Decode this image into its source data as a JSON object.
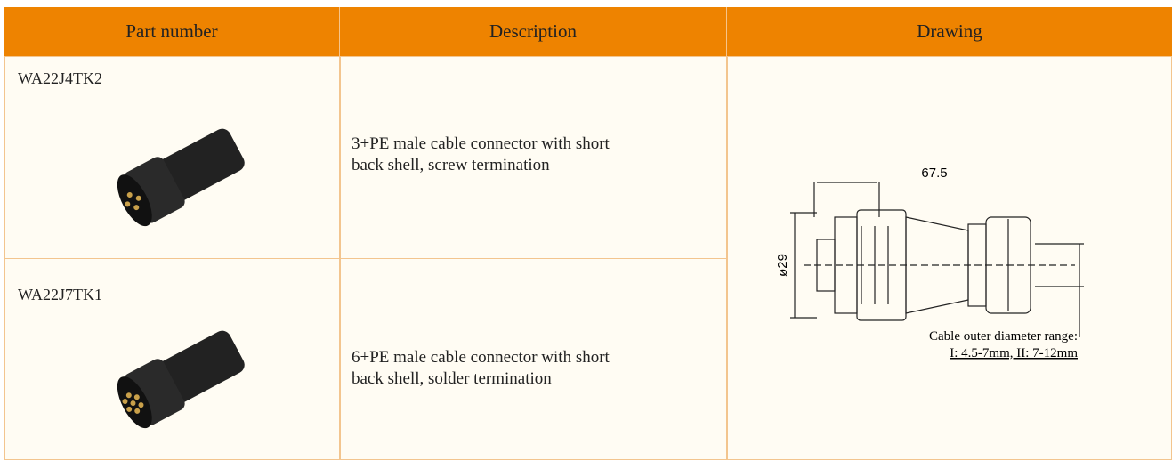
{
  "table": {
    "header": [
      "Part number",
      "Description",
      "Drawing"
    ],
    "rows": [
      {
        "part_number": "WA22J4TK2",
        "description": [
          "3+PE male cable connector with short",
          "back shell, screw termination"
        ]
      },
      {
        "part_number": "WA22J7TK1",
        "description": [
          "6+PE male cable connector with short",
          "back shell, solder termination"
        ]
      }
    ]
  },
  "drawing": {
    "length": "67.5",
    "diameter": "ø29",
    "note": [
      "Cable outer  diameter range:",
      "I: 4.5-7mm, II: 7-12mm"
    ]
  }
}
